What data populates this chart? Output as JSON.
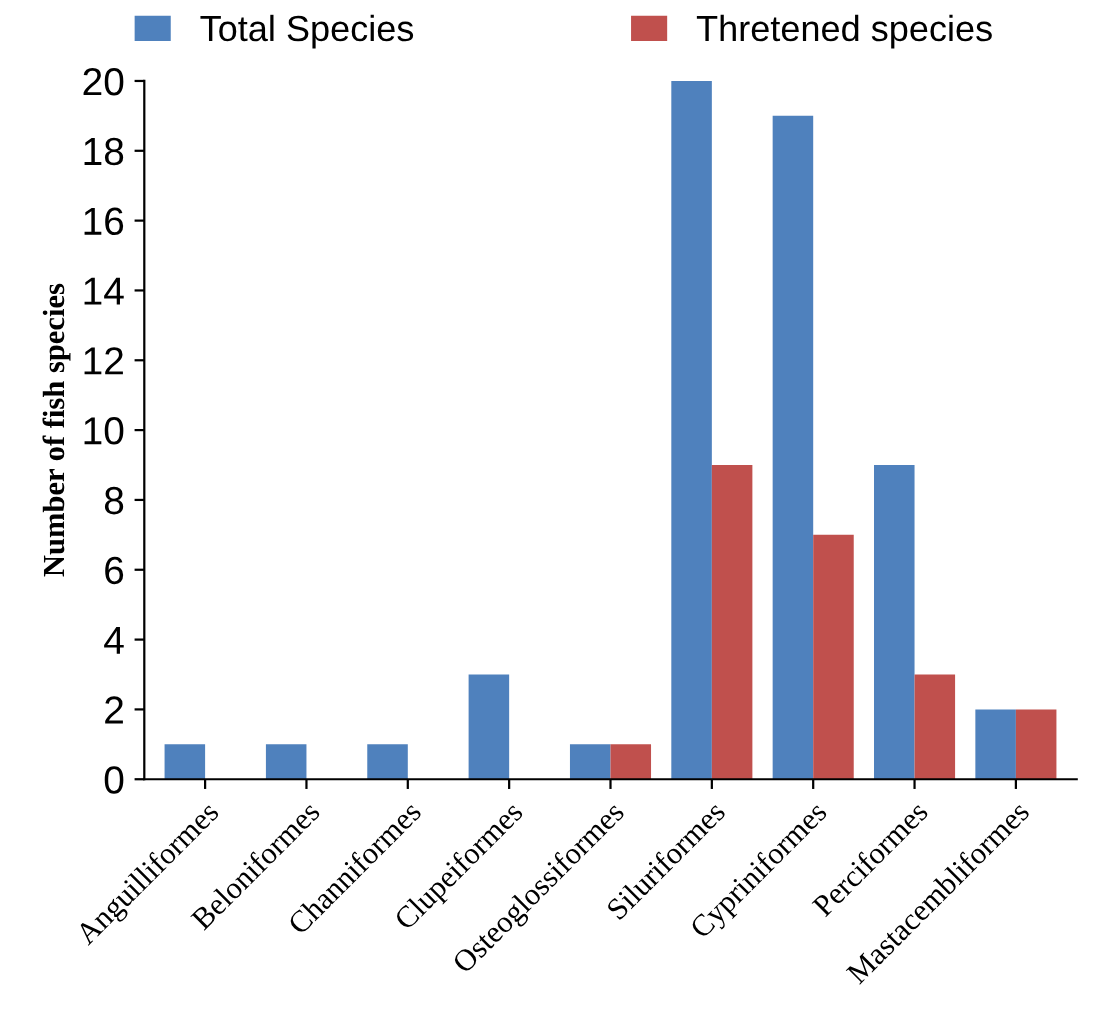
{
  "chart_data": {
    "type": "bar",
    "ylabel": "Number of fish species",
    "categories": [
      "Anguilliformes",
      "Beloniformes",
      "Channiformes",
      "Clupeiformes",
      "Osteoglossiformes",
      "Siluriformes",
      "Cypriniformes",
      "Perciformes",
      "Mastacembliformes"
    ],
    "series": [
      {
        "name": "Total Species",
        "color": "#4f81bd",
        "values": [
          1,
          1,
          1,
          3,
          1,
          20,
          19,
          9,
          2
        ]
      },
      {
        "name": "Thretened species",
        "color": "#c0504d",
        "values": [
          0,
          0,
          0,
          0,
          1,
          9,
          7,
          3,
          2
        ]
      }
    ],
    "ylim": [
      0,
      20
    ],
    "yticks": [
      0,
      2,
      4,
      6,
      8,
      10,
      12,
      14,
      16,
      18,
      20
    ],
    "grid": false,
    "legend": "top"
  }
}
